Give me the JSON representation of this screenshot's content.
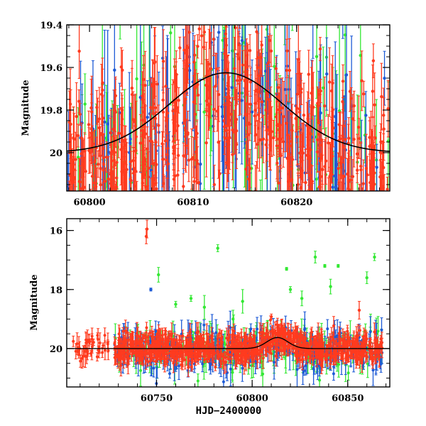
{
  "figure": {
    "xlabel": "HJD−2400000"
  },
  "chart_data": [
    {
      "type": "scatter",
      "panel": "top",
      "title": "",
      "xlabel": "",
      "ylabel": "Magnitude",
      "xlim": [
        60797.8,
        60829.0
      ],
      "ylim": [
        20.18,
        19.4
      ],
      "y_inverted": true,
      "x_ticks": [
        60800,
        60810,
        60820
      ],
      "x_tick_labels": [
        "60800",
        "60810",
        "60820"
      ],
      "y_ticks": [
        19.4,
        19.6,
        19.8,
        20.0
      ],
      "y_tick_labels": [
        "19.4",
        "19.6",
        "19.8",
        "20"
      ],
      "series": [
        {
          "color": "#ff3b1f",
          "marker": "point-with-errorbar",
          "note_count_approx": 700,
          "mean_mag": 19.85,
          "scatter_mag": 0.25
        },
        {
          "color": "#1e5bd6",
          "marker": "point-with-errorbar",
          "note_count_approx": 140,
          "mean_mag": 19.85,
          "scatter_mag": 0.3
        },
        {
          "color": "#34e834",
          "marker": "point-with-errorbar",
          "note_count_approx": 90,
          "mean_mag": 19.8,
          "scatter_mag": 0.35
        }
      ],
      "model": {
        "color": "#000000",
        "shape": "gaussian",
        "baseline_mag": 20.0,
        "peak_mag": 19.625,
        "peak_x": 60813.2,
        "width_days": 5.5
      }
    },
    {
      "type": "scatter",
      "panel": "bottom",
      "title": "",
      "xlabel": "HJD−2400000",
      "ylabel": "Magnitude",
      "xlim": [
        60703,
        60872
      ],
      "ylim": [
        21.3,
        15.6
      ],
      "y_inverted": true,
      "x_ticks": [
        60750,
        60800,
        60850
      ],
      "x_tick_labels": [
        "60750",
        "60800",
        "60850"
      ],
      "y_ticks": [
        16,
        18,
        20
      ],
      "y_tick_labels": [
        "16",
        "18",
        "20"
      ],
      "series": [
        {
          "color": "#ff3b1f",
          "marker": "point-with-errorbar",
          "x_range": [
            60706,
            60868
          ],
          "mean_mag": 20.0
        },
        {
          "color": "#1e5bd6",
          "marker": "point-with-errorbar",
          "x_range": [
            60730,
            60868
          ],
          "mean_mag": 20.1
        },
        {
          "color": "#34e834",
          "marker": "point-with-errorbar",
          "x_range": [
            60730,
            60868
          ],
          "mean_mag": 20.0
        }
      ],
      "model": {
        "color": "#000000",
        "shape": "gaussian",
        "baseline_mag": 20.0,
        "peak_mag": 19.625,
        "peak_x": 60813.2,
        "width_days": 5.5
      }
    }
  ]
}
